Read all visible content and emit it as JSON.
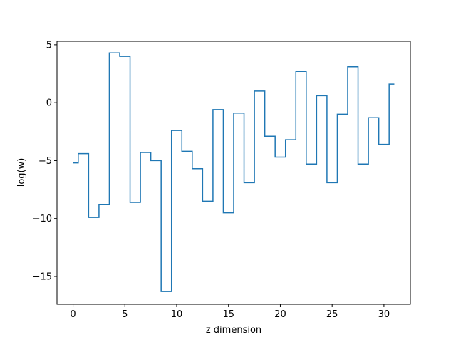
{
  "chart_data": {
    "type": "line",
    "drawstyle": "steps-mid",
    "xlabel": "z dimension",
    "ylabel": "log(w)",
    "xlim": [
      -1.55,
      32.55
    ],
    "ylim": [
      -17.4,
      5.3
    ],
    "xticks": [
      0,
      5,
      10,
      15,
      20,
      25,
      30
    ],
    "yticks": [
      5,
      0,
      -5,
      -10,
      -15
    ],
    "ytick_labels": [
      "5",
      "0",
      "−5",
      "−10",
      "−15"
    ],
    "grid": false,
    "color": "#1f77b4",
    "series": [
      {
        "x": [
          0,
          1,
          2,
          3,
          4,
          5,
          6,
          7,
          8,
          9,
          10,
          11,
          12,
          13,
          14,
          15,
          16,
          17,
          18,
          19,
          20,
          21,
          22,
          23,
          24,
          25,
          26,
          27,
          28,
          29,
          30,
          31
        ],
        "values": [
          -5.2,
          -4.4,
          -9.9,
          -8.8,
          4.3,
          4.0,
          -8.6,
          -4.3,
          -5.0,
          -16.3,
          -2.4,
          -4.2,
          -5.7,
          -8.5,
          -0.6,
          -9.5,
          -0.9,
          -6.9,
          1.0,
          -2.9,
          -4.7,
          -3.2,
          2.7,
          -5.3,
          0.6,
          -6.9,
          -1.0,
          3.1,
          -5.3,
          -1.3,
          -3.6,
          1.6
        ]
      }
    ]
  }
}
